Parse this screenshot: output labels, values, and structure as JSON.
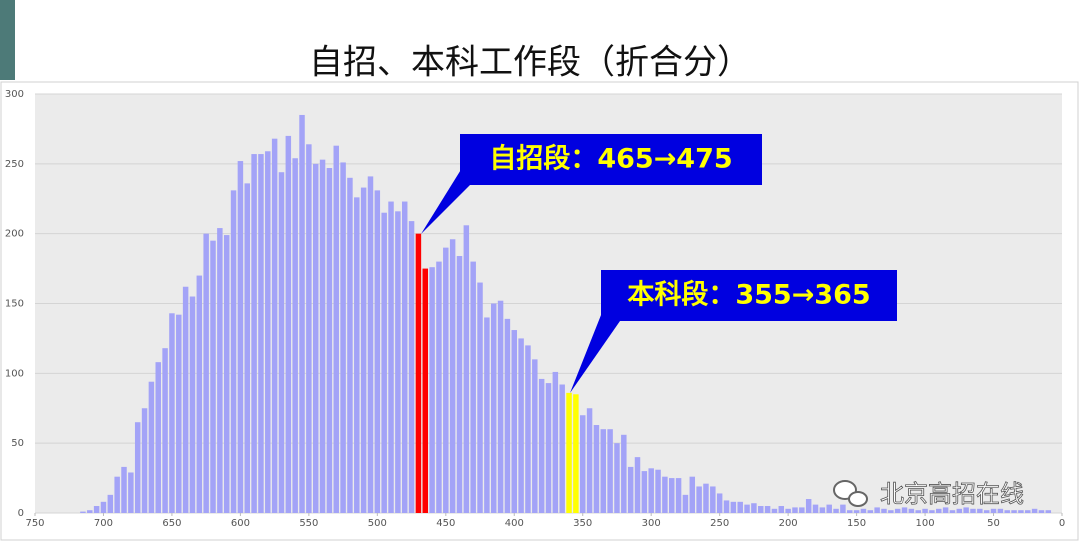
{
  "chart_data": {
    "type": "bar",
    "title": "自招、本科工作段（折合分）",
    "x": [
      715,
      710,
      705,
      700,
      695,
      690,
      685,
      680,
      675,
      670,
      665,
      660,
      655,
      650,
      645,
      640,
      635,
      630,
      625,
      620,
      615,
      610,
      605,
      600,
      595,
      590,
      585,
      580,
      575,
      570,
      565,
      560,
      555,
      550,
      545,
      540,
      535,
      530,
      525,
      520,
      515,
      510,
      505,
      500,
      495,
      490,
      485,
      480,
      475,
      470,
      465,
      460,
      455,
      450,
      445,
      440,
      435,
      430,
      425,
      420,
      415,
      410,
      405,
      400,
      395,
      390,
      385,
      380,
      375,
      370,
      365,
      360,
      355,
      350,
      345,
      340,
      335,
      330,
      325,
      320,
      315,
      310,
      305,
      300,
      295,
      290,
      285,
      280,
      275,
      270,
      265,
      260,
      255,
      250,
      245,
      240,
      235,
      230,
      225,
      220,
      215,
      210,
      205,
      200,
      195,
      190,
      185,
      180,
      175,
      170,
      165,
      160,
      155,
      150,
      145,
      140,
      135,
      130,
      125,
      120,
      115,
      110,
      105,
      100,
      95,
      90,
      85,
      80,
      75,
      70,
      65,
      60,
      55,
      50,
      45,
      40,
      35,
      30,
      25,
      20,
      15,
      10
    ],
    "values": [
      1,
      2,
      5,
      8,
      13,
      26,
      33,
      29,
      65,
      75,
      94,
      108,
      118,
      143,
      142,
      162,
      155,
      170,
      200,
      195,
      204,
      199,
      231,
      252,
      236,
      257,
      257,
      259,
      268,
      244,
      270,
      254,
      285,
      264,
      250,
      253,
      247,
      263,
      251,
      240,
      226,
      233,
      241,
      231,
      215,
      223,
      216,
      223,
      209,
      200,
      175,
      176,
      180,
      190,
      196,
      184,
      206,
      180,
      165,
      140,
      150,
      152,
      139,
      131,
      125,
      120,
      110,
      96,
      93,
      101,
      92,
      86,
      85,
      70,
      75,
      63,
      60,
      60,
      50,
      56,
      33,
      40,
      30,
      32,
      31,
      26,
      25,
      25,
      13,
      26,
      19,
      21,
      19,
      14,
      9,
      8,
      8,
      6,
      7,
      5,
      5,
      3,
      5,
      3,
      4,
      4,
      10,
      6,
      4,
      6,
      3,
      6,
      2,
      2,
      3,
      2,
      4,
      3,
      2,
      3,
      4,
      3,
      2,
      3,
      2,
      3,
      4,
      2,
      3,
      4,
      3,
      3,
      2,
      3,
      3,
      2,
      2,
      2,
      2,
      3,
      2,
      2
    ],
    "colors": [
      "#a3a3f7",
      "#a3a3f7",
      "#a3a3f7",
      "#a3a3f7",
      "#a3a3f7",
      "#a3a3f7",
      "#a3a3f7",
      "#a3a3f7",
      "#a3a3f7",
      "#a3a3f7",
      "#a3a3f7",
      "#a3a3f7",
      "#a3a3f7",
      "#a3a3f7",
      "#a3a3f7",
      "#a3a3f7",
      "#a3a3f7",
      "#a3a3f7",
      "#a3a3f7",
      "#a3a3f7",
      "#a3a3f7",
      "#a3a3f7",
      "#a3a3f7",
      "#a3a3f7",
      "#a3a3f7",
      "#a3a3f7",
      "#a3a3f7",
      "#a3a3f7",
      "#a3a3f7",
      "#a3a3f7",
      "#a3a3f7",
      "#a3a3f7",
      "#a3a3f7",
      "#a3a3f7",
      "#a3a3f7",
      "#a3a3f7",
      "#a3a3f7",
      "#a3a3f7",
      "#a3a3f7",
      "#a3a3f7",
      "#a3a3f7",
      "#a3a3f7",
      "#a3a3f7",
      "#a3a3f7",
      "#a3a3f7",
      "#a3a3f7",
      "#a3a3f7",
      "#a3a3f7",
      "#a3a3f7",
      "#ff0000",
      "#ff0000",
      "#a3a3f7",
      "#a3a3f7",
      "#a3a3f7",
      "#a3a3f7",
      "#a3a3f7",
      "#a3a3f7",
      "#a3a3f7",
      "#a3a3f7",
      "#a3a3f7",
      "#a3a3f7",
      "#a3a3f7",
      "#a3a3f7",
      "#a3a3f7",
      "#a3a3f7",
      "#a3a3f7",
      "#a3a3f7",
      "#a3a3f7",
      "#a3a3f7",
      "#a3a3f7",
      "#a3a3f7",
      "#ffff00",
      "#ffff00",
      "#a3a3f7",
      "#a3a3f7",
      "#a3a3f7",
      "#a3a3f7",
      "#a3a3f7",
      "#a3a3f7",
      "#a3a3f7",
      "#a3a3f7",
      "#a3a3f7",
      "#a3a3f7",
      "#a3a3f7",
      "#a3a3f7",
      "#a3a3f7",
      "#a3a3f7",
      "#a3a3f7",
      "#a3a3f7",
      "#a3a3f7",
      "#a3a3f7",
      "#a3a3f7",
      "#a3a3f7",
      "#a3a3f7",
      "#a3a3f7",
      "#a3a3f7",
      "#a3a3f7",
      "#a3a3f7",
      "#a3a3f7",
      "#a3a3f7",
      "#a3a3f7",
      "#a3a3f7",
      "#a3a3f7",
      "#a3a3f7",
      "#a3a3f7",
      "#a3a3f7",
      "#a3a3f7",
      "#a3a3f7",
      "#a3a3f7",
      "#a3a3f7",
      "#a3a3f7",
      "#a3a3f7",
      "#a3a3f7",
      "#a3a3f7",
      "#a3a3f7",
      "#a3a3f7",
      "#a3a3f7",
      "#a3a3f7",
      "#a3a3f7",
      "#a3a3f7",
      "#a3a3f7",
      "#a3a3f7",
      "#a3a3f7",
      "#a3a3f7",
      "#a3a3f7",
      "#a3a3f7",
      "#a3a3f7",
      "#a3a3f7",
      "#a3a3f7",
      "#a3a3f7",
      "#a3a3f7",
      "#a3a3f7",
      "#a3a3f7",
      "#a3a3f7",
      "#a3a3f7",
      "#a3a3f7",
      "#a3a3f7",
      "#a3a3f7",
      "#a3a3f7",
      "#a3a3f7",
      "#a3a3f7",
      "#a3a3f7"
    ],
    "xlim": [
      750,
      0
    ],
    "xticks": [
      750,
      700,
      650,
      600,
      550,
      500,
      450,
      400,
      350,
      300,
      250,
      200,
      150,
      100,
      50,
      0
    ],
    "ylim": [
      0,
      300
    ],
    "yticks": [
      0,
      50,
      100,
      150,
      200,
      250,
      300
    ],
    "grid": true,
    "annotations": [
      "自招段：465→475",
      "本科段：355→365"
    ],
    "watermark": "北京高招在线"
  }
}
